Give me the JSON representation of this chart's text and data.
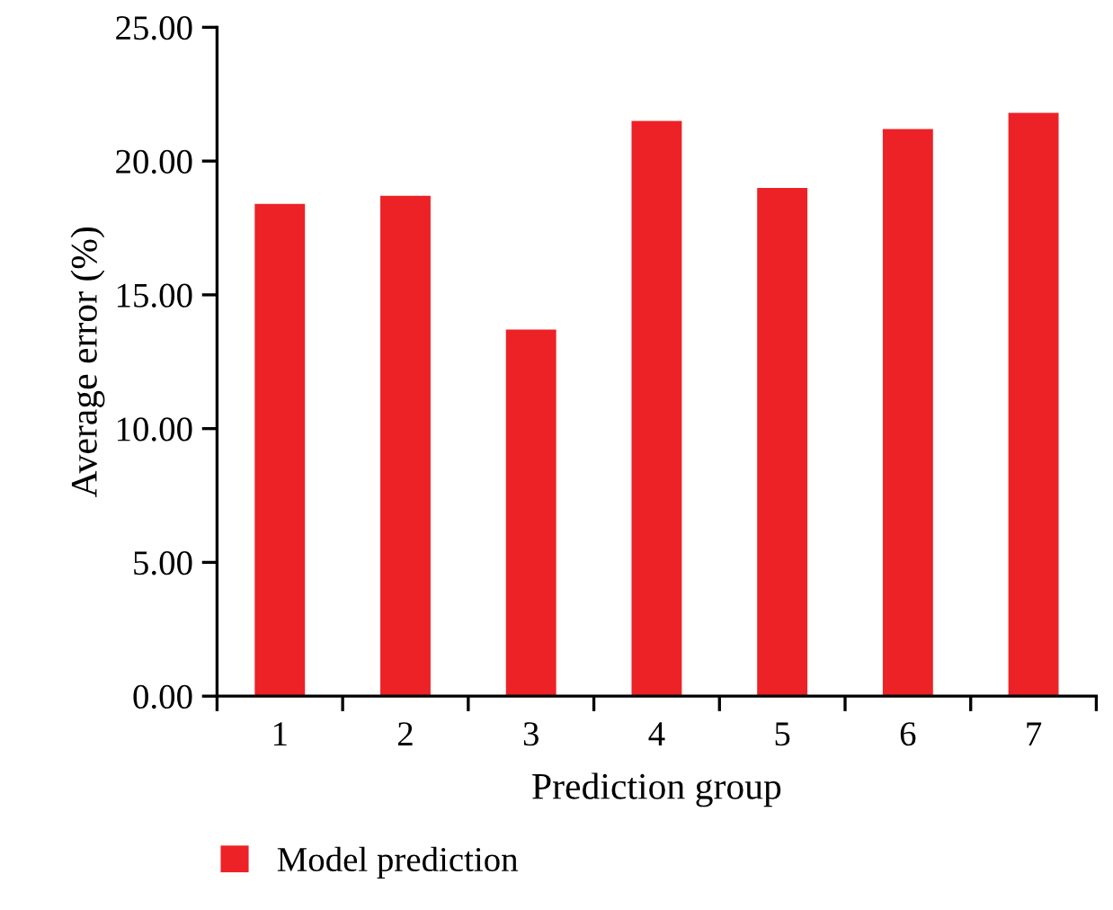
{
  "chart_data": {
    "type": "bar",
    "xlabel": "Prediction group",
    "ylabel": "Average error (%)",
    "categories": [
      "1",
      "2",
      "3",
      "4",
      "5",
      "6",
      "7"
    ],
    "series": [
      {
        "name": "Model prediction",
        "color": "#ec2227",
        "values": [
          18.4,
          18.7,
          13.7,
          21.5,
          19.0,
          21.2,
          21.8
        ]
      }
    ],
    "ylim": [
      0,
      25
    ],
    "yticks": [
      {
        "value": 0,
        "label": "0.00"
      },
      {
        "value": 5,
        "label": "5.00"
      },
      {
        "value": 10,
        "label": "10.00"
      },
      {
        "value": 15,
        "label": "15.00"
      },
      {
        "value": 20,
        "label": "20.00"
      },
      {
        "value": 25,
        "label": "25.00"
      }
    ],
    "legend": "bottom left",
    "grid": false
  }
}
